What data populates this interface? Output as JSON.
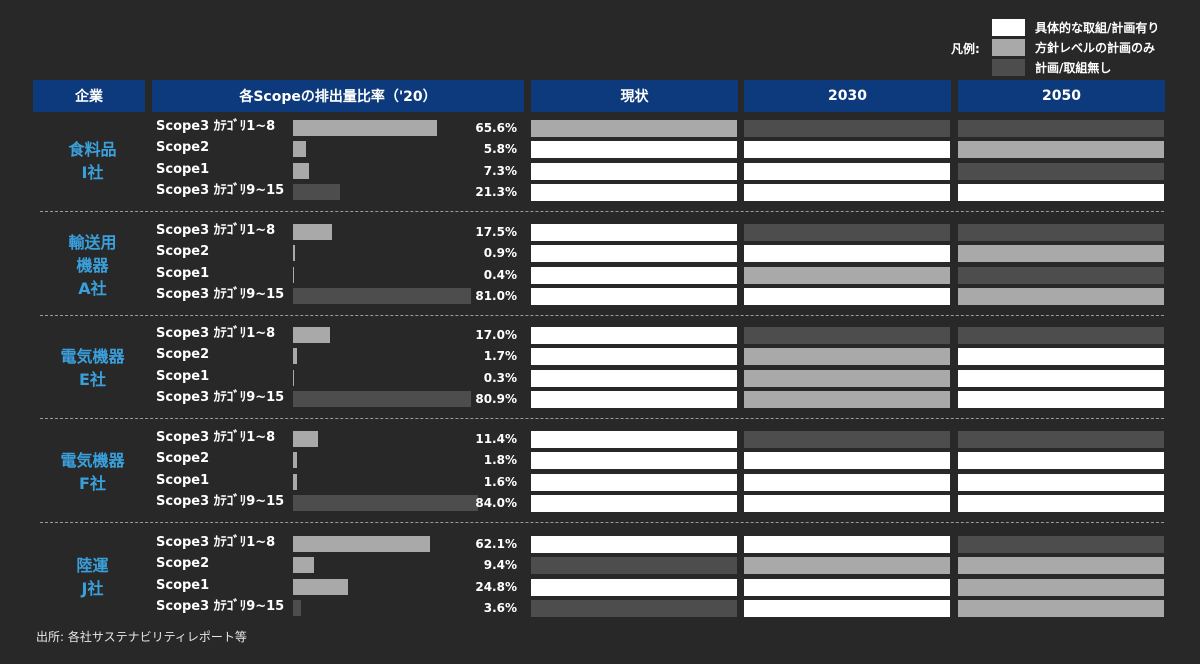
{
  "colors": {
    "background": "#282828",
    "header_blue": "#0d3a7c",
    "company_blue": "#3aa0dc",
    "white": "#ffffff",
    "light_gray": "#a9a9a9",
    "dark_gray": "#4d4d4d",
    "bar_share": "#a9a9a9",
    "bar_cat9": "#4d4d4d"
  },
  "legend": {
    "label": "凡例:",
    "items": [
      {
        "text": "具体的な取組/計画有り",
        "color": "#ffffff"
      },
      {
        "text": "方針レベルの計画のみ",
        "color": "#a9a9a9"
      },
      {
        "text": "計画/取組無し",
        "color": "#4d4d4d"
      }
    ]
  },
  "headers": {
    "company": "企業",
    "ratio": "各Scopeの排出量比率（'20）",
    "current": "現状",
    "y2030": "2030",
    "y2050": "2050"
  },
  "scope_labels": [
    "Scope3 ｶﾃｺﾞﾘ1~8",
    "Scope2",
    "Scope1",
    "Scope3 ｶﾃｺﾞﾘ9~15"
  ],
  "companies": [
    {
      "name": [
        "食料品",
        "I社"
      ],
      "values": [
        65.6,
        5.8,
        7.3,
        21.3
      ],
      "pct_labels": [
        "65.6%",
        "5.8%",
        "7.3%",
        "21.3%"
      ],
      "status": {
        "current": [
          "light",
          "white",
          "white",
          "white"
        ],
        "y2030": [
          "dark",
          "white",
          "white",
          "white"
        ],
        "y2050": [
          "dark",
          "light",
          "dark",
          "white"
        ]
      }
    },
    {
      "name": [
        "輸送用",
        "機器",
        "A社"
      ],
      "values": [
        17.5,
        0.9,
        0.4,
        81.0
      ],
      "pct_labels": [
        "17.5%",
        "0.9%",
        "0.4%",
        "81.0%"
      ],
      "status": {
        "current": [
          "white",
          "white",
          "white",
          "white"
        ],
        "y2030": [
          "dark",
          "white",
          "light",
          "white"
        ],
        "y2050": [
          "dark",
          "light",
          "dark",
          "light"
        ]
      }
    },
    {
      "name": [
        "電気機器",
        "E社"
      ],
      "values": [
        17.0,
        1.7,
        0.3,
        80.9
      ],
      "pct_labels": [
        "17.0%",
        "1.7%",
        "0.3%",
        "80.9%"
      ],
      "status": {
        "current": [
          "white",
          "white",
          "white",
          "white"
        ],
        "y2030": [
          "dark",
          "light",
          "light",
          "light"
        ],
        "y2050": [
          "dark",
          "white",
          "white",
          "white"
        ]
      }
    },
    {
      "name": [
        "電気機器",
        "F社"
      ],
      "values": [
        11.4,
        1.8,
        1.6,
        84.0
      ],
      "pct_labels": [
        "11.4%",
        "1.8%",
        "1.6%",
        "84.0%"
      ],
      "status": {
        "current": [
          "white",
          "white",
          "white",
          "white"
        ],
        "y2030": [
          "dark",
          "white",
          "white",
          "white"
        ],
        "y2050": [
          "dark",
          "white",
          "white",
          "white"
        ]
      }
    },
    {
      "name": [
        "陸運",
        "J社"
      ],
      "values": [
        62.1,
        9.4,
        24.8,
        3.6
      ],
      "pct_labels": [
        "62.1%",
        "9.4%",
        "24.8%",
        "3.6%"
      ],
      "status": {
        "current": [
          "white",
          "dark",
          "white",
          "dark"
        ],
        "y2030": [
          "white",
          "light",
          "white",
          "white"
        ],
        "y2050": [
          "dark",
          "light",
          "light",
          "light"
        ]
      }
    }
  ],
  "chart_data": {
    "type": "bar",
    "title": "各Scopeの排出量比率（'20）",
    "categories": [
      "Scope3 ｶﾃｺﾞﾘ1~8",
      "Scope2",
      "Scope1",
      "Scope3 ｶﾃｺﾞﾘ9~15"
    ],
    "unit": "%",
    "series": [
      {
        "name": "食料品 I社",
        "values": [
          65.6,
          5.8,
          7.3,
          21.3
        ]
      },
      {
        "name": "輸送用機器 A社",
        "values": [
          17.5,
          0.9,
          0.4,
          81.0
        ]
      },
      {
        "name": "電気機器 E社",
        "values": [
          17.0,
          1.7,
          0.3,
          80.9
        ]
      },
      {
        "name": "電気機器 F社",
        "values": [
          11.4,
          1.8,
          1.6,
          84.0
        ]
      },
      {
        "name": "陸運 J社",
        "values": [
          62.1,
          9.4,
          24.8,
          3.6
        ]
      }
    ],
    "ylim": [
      0,
      100
    ]
  },
  "source": "出所: 各社サステナビリティレポート等"
}
